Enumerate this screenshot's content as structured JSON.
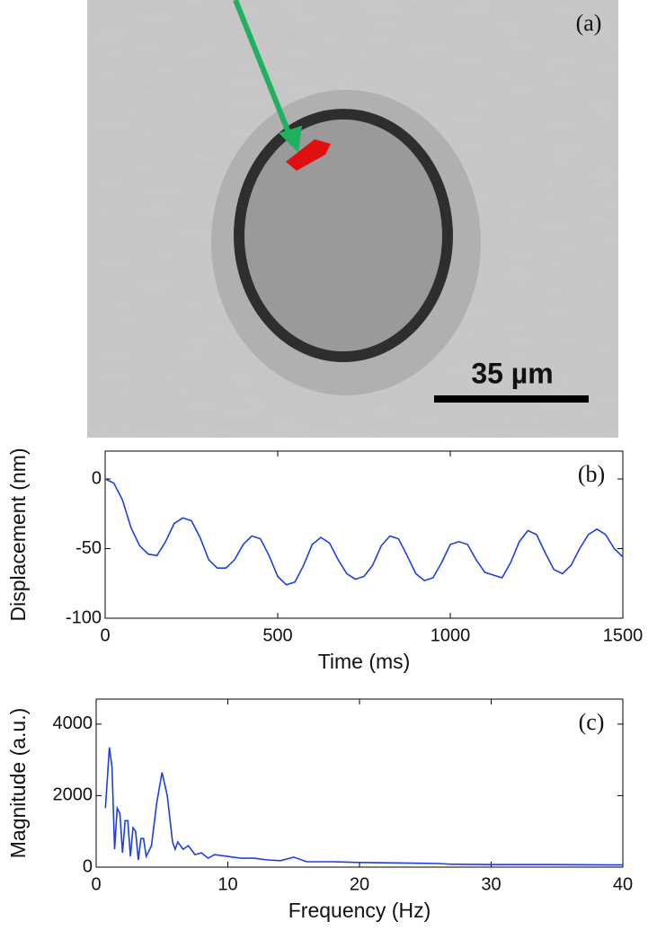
{
  "image": {
    "label": "(a)",
    "scale_bar": "35 µm"
  },
  "chart_data": [
    {
      "type": "line",
      "label": "(b)",
      "xlabel": "Time (ms)",
      "ylabel": "Displacement (nm)",
      "x": [
        0,
        25,
        50,
        75,
        100,
        125,
        150,
        175,
        200,
        225,
        250,
        275,
        300,
        325,
        350,
        375,
        400,
        425,
        450,
        475,
        500,
        525,
        550,
        575,
        600,
        625,
        650,
        675,
        700,
        725,
        750,
        775,
        800,
        825,
        850,
        875,
        900,
        925,
        950,
        975,
        1000,
        1025,
        1050,
        1075,
        1100,
        1125,
        1150,
        1175,
        1200,
        1225,
        1250,
        1275,
        1300,
        1325,
        1350,
        1375,
        1400,
        1425,
        1450,
        1475,
        1500
      ],
      "series": [
        {
          "color": "#1f3fe0",
          "values": [
            0,
            -3,
            -15,
            -35,
            -48,
            -54,
            -55,
            -45,
            -32,
            -28,
            -30,
            -42,
            -58,
            -64,
            -64,
            -58,
            -47,
            -41,
            -43,
            -55,
            -70,
            -76,
            -74,
            -62,
            -47,
            -42,
            -46,
            -58,
            -68,
            -72,
            -70,
            -62,
            -48,
            -41,
            -43,
            -55,
            -68,
            -73,
            -71,
            -60,
            -47,
            -45,
            -47,
            -58,
            -67,
            -69,
            -71,
            -60,
            -45,
            -37,
            -40,
            -53,
            -65,
            -68,
            -62,
            -50,
            -40,
            -36,
            -40,
            -50,
            -56
          ]
        }
      ],
      "xlim": [
        0,
        1500
      ],
      "xticks": [
        0,
        500,
        1000,
        1500
      ],
      "ylim": [
        -100,
        20
      ],
      "yticks": [
        -100,
        -50,
        0
      ],
      "grid": false
    },
    {
      "type": "line",
      "label": "(c)",
      "xlabel": "Frequency (Hz)",
      "ylabel": "Magnitude (a.u.)",
      "x": [
        0.7,
        1.0,
        1.2,
        1.4,
        1.6,
        1.8,
        2.0,
        2.2,
        2.4,
        2.6,
        2.8,
        3.0,
        3.2,
        3.4,
        3.6,
        3.8,
        4.2,
        4.6,
        5.0,
        5.4,
        5.8,
        6.0,
        6.2,
        6.6,
        7,
        7.5,
        8,
        8.5,
        9,
        10,
        11,
        12,
        13,
        14,
        15,
        16,
        18,
        20,
        22,
        24,
        26,
        27,
        30,
        35,
        40
      ],
      "series": [
        {
          "color": "#1f3fe0",
          "values": [
            1650,
            3350,
            2800,
            500,
            1650,
            1500,
            400,
            1300,
            1300,
            300,
            1100,
            1000,
            200,
            800,
            800,
            300,
            600,
            1800,
            2650,
            2000,
            700,
            500,
            700,
            500,
            600,
            350,
            400,
            250,
            350,
            300,
            250,
            250,
            200,
            180,
            280,
            150,
            150,
            130,
            120,
            110,
            100,
            80,
            70,
            70,
            60
          ]
        }
      ],
      "xlim": [
        0,
        40
      ],
      "xticks": [
        0,
        10,
        20,
        30,
        40
      ],
      "ylim": [
        0,
        4700
      ],
      "yticks": [
        0,
        2000,
        4000
      ],
      "grid": false
    }
  ]
}
